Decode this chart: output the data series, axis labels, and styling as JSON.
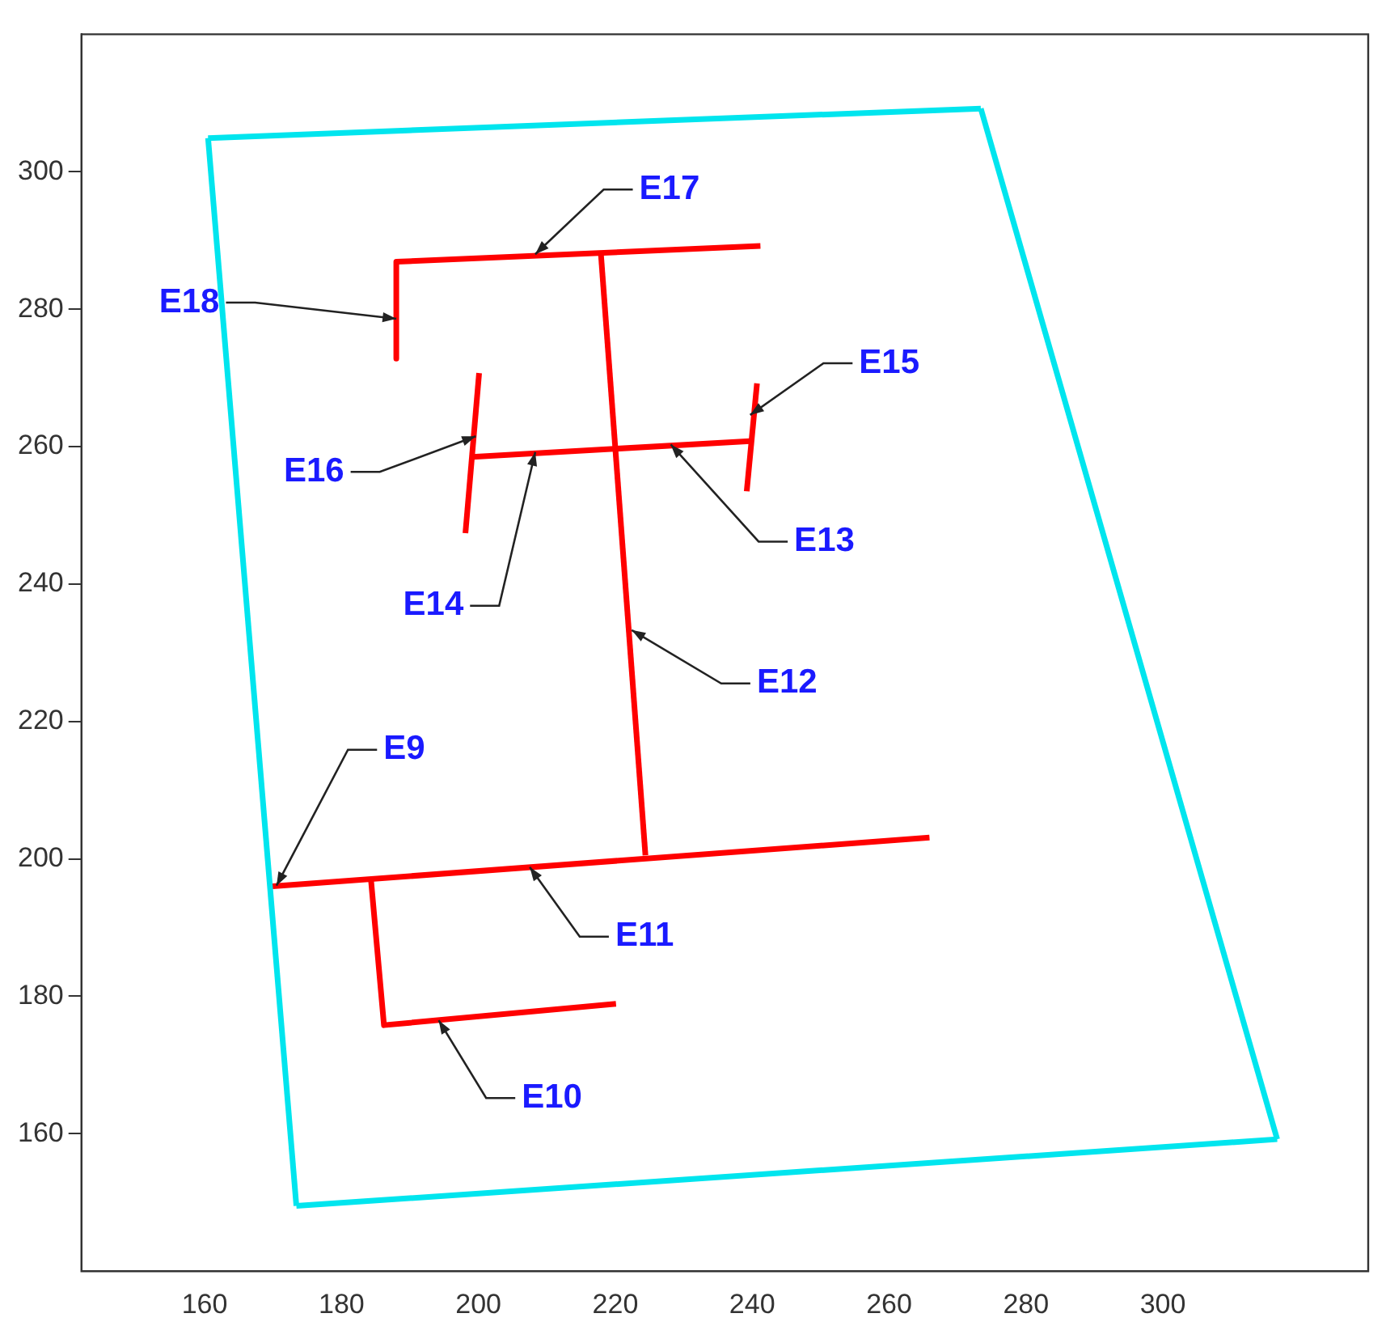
{
  "chart_data": {
    "type": "line",
    "xlim": [
      142,
      330
    ],
    "ylim": [
      140,
      320
    ],
    "xticks": [
      160,
      180,
      200,
      220,
      240,
      260,
      280,
      300
    ],
    "yticks": [
      160,
      180,
      200,
      220,
      240,
      260,
      280,
      300
    ],
    "legend": false,
    "marker": "none",
    "line_style": "solid",
    "series": [
      {
        "color": "#00e5ee",
        "x": [
          160.5,
          273.4
        ],
        "values": [
          304.9,
          309.2
        ]
      },
      {
        "color": "#00e5ee",
        "x": [
          273.4,
          316.7
        ],
        "values": [
          309.2,
          159.2
        ]
      },
      {
        "color": "#00e5ee",
        "x": [
          173.4,
          316.7
        ],
        "values": [
          149.5,
          159.2
        ]
      },
      {
        "color": "#00e5ee",
        "x": [
          160.5,
          173.4
        ],
        "values": [
          304.9,
          149.5
        ]
      },
      {
        "color": "#ff0000",
        "x": [
          188.0,
          241.2
        ],
        "values": [
          286.9,
          289.2
        ]
      },
      {
        "color": "#ff0000",
        "x": [
          188.0,
          188.0
        ],
        "values": [
          286.9,
          272.8
        ]
      },
      {
        "color": "#ff0000",
        "x": [
          217.9,
          224.4
        ],
        "values": [
          288.0,
          200.5
        ]
      },
      {
        "color": "#ff0000",
        "x": [
          199.1,
          239.7
        ],
        "values": [
          258.5,
          260.8
        ]
      },
      {
        "color": "#ff0000",
        "x": [
          200.1,
          198.1
        ],
        "values": [
          270.7,
          247.4
        ]
      },
      {
        "color": "#ff0000",
        "x": [
          240.7,
          239.2
        ],
        "values": [
          269.2,
          253.5
        ]
      },
      {
        "color": "#ff0000",
        "x": [
          169.9,
          265.9
        ],
        "values": [
          196.0,
          203.1
        ]
      },
      {
        "color": "#ff0000",
        "x": [
          184.3,
          186.2,
          220.1
        ],
        "values": [
          197.0,
          175.8,
          178.9
        ]
      }
    ],
    "annotations": [
      {
        "text": "E18",
        "x": 188.0,
        "y": 278.6
      },
      {
        "text": "E17",
        "x": 208.3,
        "y": 288.0
      },
      {
        "text": "E15",
        "x": 239.7,
        "y": 264.6
      },
      {
        "text": "E16",
        "x": 199.6,
        "y": 261.5
      },
      {
        "text": "E13",
        "x": 228.1,
        "y": 260.3
      },
      {
        "text": "E14",
        "x": 208.3,
        "y": 259.2
      },
      {
        "text": "E12",
        "x": 222.4,
        "y": 233.3
      },
      {
        "text": "E9",
        "x": 170.5,
        "y": 196.1
      },
      {
        "text": "E11",
        "x": 207.5,
        "y": 198.8
      },
      {
        "text": "E10",
        "x": 194.2,
        "y": 176.5
      }
    ]
  }
}
